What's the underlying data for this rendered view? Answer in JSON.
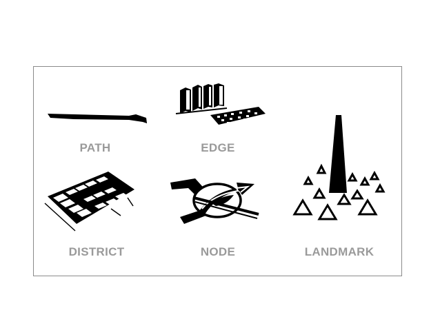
{
  "labels": {
    "path": "PATH",
    "edge": "EDGE",
    "district": "DISTRICT",
    "node": "NODE",
    "landmark": "LANDMARK"
  },
  "colors": {
    "ink": "#000000",
    "label": "#9a9a9a",
    "frame_border": "#8a8a8a",
    "background": "#ffffff"
  },
  "icons": [
    "path-glyph",
    "edge-glyph",
    "district-glyph",
    "node-glyph",
    "landmark-glyph"
  ]
}
